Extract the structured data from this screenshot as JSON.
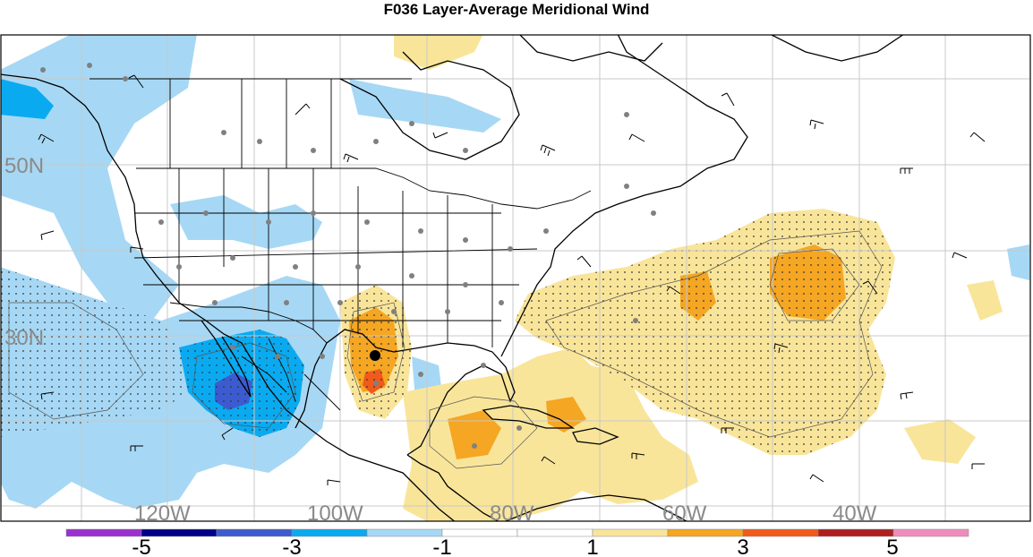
{
  "title": "F036 Layer-Average Meridional Wind",
  "lat_labels": [
    "50N",
    "30N"
  ],
  "lon_labels": [
    "120W",
    "100W",
    "80W",
    "60W",
    "40W"
  ],
  "colorbar": {
    "colors": [
      "#9b30d0",
      "#00008b",
      "#3d5bd0",
      "#0aaaf0",
      "#a6d8f5",
      "#ffffff",
      "#ffffff",
      "#f9e59a",
      "#f5a623",
      "#f05a1a",
      "#b01f1f",
      "#f08cbc"
    ],
    "labels": [
      "-5",
      "-3",
      "-1",
      "1",
      "3",
      "5"
    ]
  },
  "legend_colors": {
    "negative_light": "#a6d8f5",
    "negative_mid": "#0aaaf0",
    "negative_strong": "#3d5bd0",
    "positive_light": "#f9e59a",
    "positive_mid": "#f5a623",
    "positive_strong": "#f05a1a"
  }
}
